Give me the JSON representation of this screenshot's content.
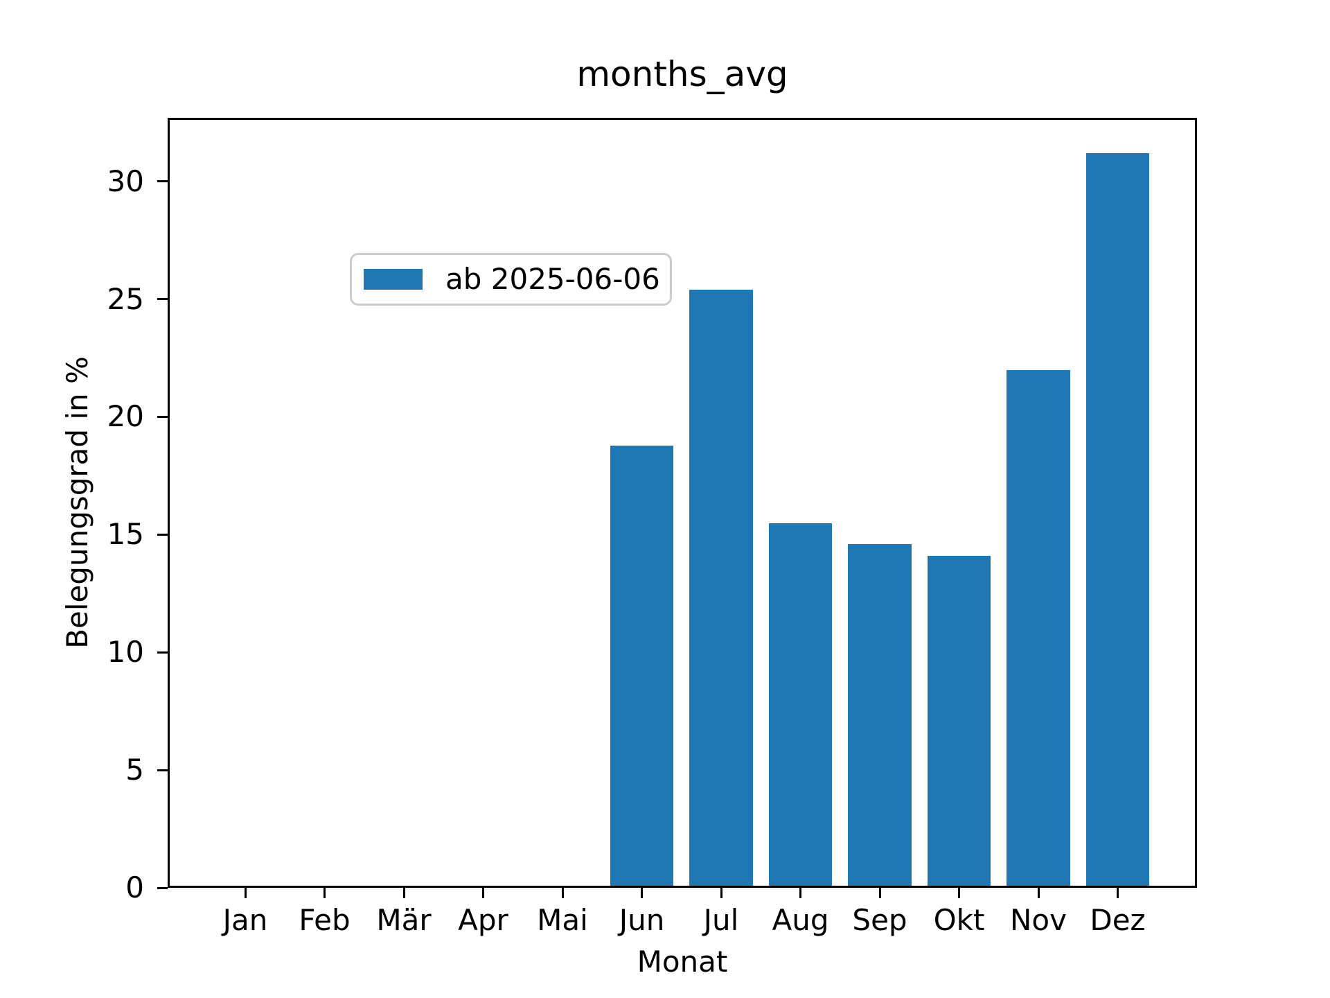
{
  "chart_data": {
    "type": "bar",
    "title": "months_avg",
    "xlabel": "Monat",
    "ylabel": "Belegungsgrad in %",
    "categories": [
      "Jan",
      "Feb",
      "Mär",
      "Apr",
      "Mai",
      "Jun",
      "Jul",
      "Aug",
      "Sep",
      "Okt",
      "Nov",
      "Dez"
    ],
    "values": [
      0,
      0,
      0,
      0,
      0,
      18.7,
      25.3,
      15.4,
      14.5,
      14.0,
      21.9,
      31.1
    ],
    "series_name": "ab 2025-06-06",
    "legend": [
      "ab 2025-06-06"
    ],
    "legend_position": "upper left",
    "yticks": [
      0,
      5,
      10,
      15,
      20,
      25,
      30
    ],
    "ylim": [
      0,
      32.7
    ],
    "grid": false,
    "bar_color": "#1f77b4",
    "background_color": "#ffffff",
    "spine_color": "#000000"
  }
}
